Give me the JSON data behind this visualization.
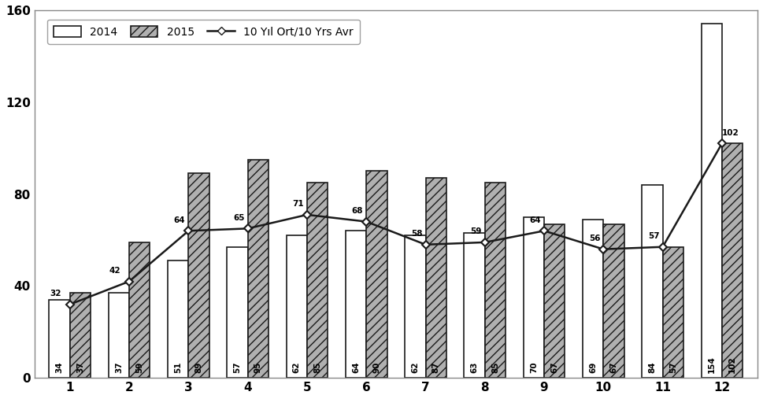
{
  "months": [
    1,
    2,
    3,
    4,
    5,
    6,
    7,
    8,
    9,
    10,
    11,
    12
  ],
  "data_2014": [
    34,
    37,
    51,
    57,
    62,
    64,
    62,
    63,
    70,
    69,
    84,
    154
  ],
  "data_2015": [
    37,
    59,
    89,
    95,
    85,
    90,
    87,
    85,
    67,
    67,
    57,
    102
  ],
  "avg_10yr": [
    32,
    42,
    64,
    65,
    71,
    68,
    58,
    59,
    64,
    56,
    57,
    102
  ],
  "ylim": [
    0,
    160
  ],
  "yticks": [
    0,
    40,
    80,
    120,
    160
  ],
  "bar_width": 0.35,
  "color_2014": "#ffffff",
  "color_2015": "#b0b0b0",
  "color_line": "#1a1a1a",
  "edgecolor": "#1a1a1a",
  "legend_2014": "2014",
  "legend_2015": "2015",
  "legend_avg": "10 Yıl Ort/10 Yrs Avr",
  "bar_label_fontsize": 7.5,
  "hatch_2015": "///",
  "background_color": "#ffffff"
}
